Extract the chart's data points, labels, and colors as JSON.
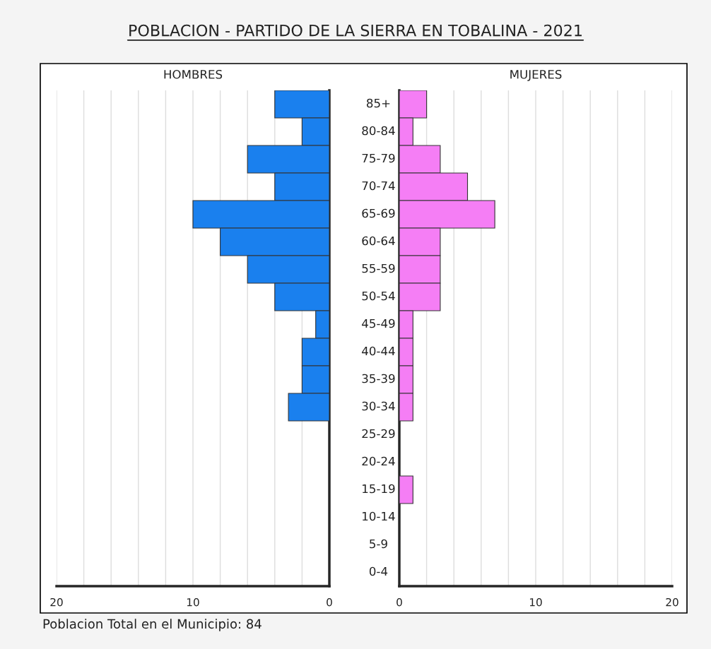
{
  "chart_data": [
    {
      "type": "bar",
      "orientation": "horizontal",
      "title": "POBLACION - PARTIDO DE LA SIERRA EN TOBALINA - 2021",
      "categories": [
        "85+",
        "80-84",
        "75-79",
        "70-74",
        "65-69",
        "60-64",
        "55-59",
        "50-54",
        "45-49",
        "40-44",
        "35-39",
        "30-34",
        "25-29",
        "20-24",
        "15-19",
        "10-14",
        "5-9",
        "0-4"
      ],
      "series": [
        {
          "name": "HOMBRES",
          "color": "#1a80ee",
          "values": [
            4,
            2,
            6,
            4,
            10,
            8,
            6,
            4,
            1,
            2,
            2,
            3,
            0,
            0,
            0,
            0,
            0,
            0
          ]
        }
      ],
      "xlim": [
        20,
        0
      ],
      "xticks": [
        20,
        {
          "value": 18,
          "label": null
        },
        {
          "value": 16,
          "label": null
        },
        {
          "value": 14,
          "label": null
        },
        {
          "value": 12,
          "label": null
        },
        10,
        {
          "value": 8,
          "label": null
        },
        {
          "value": 6,
          "label": null
        },
        {
          "value": 4,
          "label": null
        },
        {
          "value": 2,
          "label": null
        },
        0
      ],
      "grid": "x",
      "annotations": [
        "Poblacion Total en el Municipio: 84"
      ]
    },
    {
      "type": "bar",
      "orientation": "horizontal",
      "series": [
        {
          "name": "MUJERES",
          "color": "#f57ef5",
          "values": [
            2,
            1,
            3,
            5,
            7,
            3,
            3,
            3,
            1,
            1,
            1,
            1,
            0,
            0,
            1,
            0,
            0,
            0
          ]
        }
      ],
      "xlim": [
        0,
        20
      ],
      "xticks": [
        0,
        {
          "value": 2,
          "label": null
        },
        {
          "value": 4,
          "label": null
        },
        {
          "value": 6,
          "label": null
        },
        {
          "value": 8,
          "label": null
        },
        10,
        {
          "value": 12,
          "label": null
        },
        {
          "value": 14,
          "label": null
        },
        {
          "value": 16,
          "label": null
        },
        {
          "value": 18,
          "label": null
        },
        20
      ],
      "grid": "x"
    }
  ]
}
